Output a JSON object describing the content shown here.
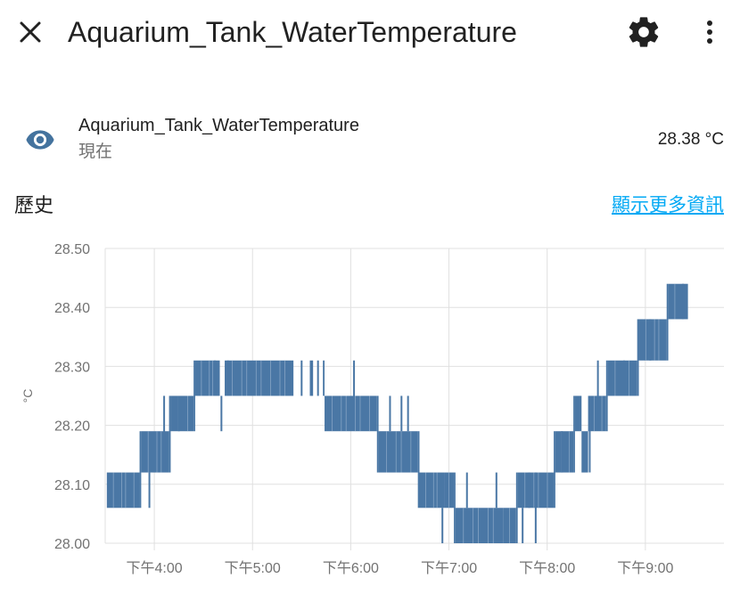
{
  "header": {
    "title": "Aquarium_Tank_WaterTemperature"
  },
  "entity": {
    "name": "Aquarium_Tank_WaterTemperature",
    "subtitle": "現在",
    "value": "28.38 °C"
  },
  "history": {
    "title": "歷史",
    "more_link": "顯示更多資訊"
  },
  "colors": {
    "series": "#4a77a5",
    "link": "#03a9f4",
    "grid": "#e0e0e0",
    "icon": "#44739e"
  },
  "chart_data": {
    "type": "line",
    "ylabel": "°C",
    "ylim": [
      28.0,
      28.5
    ],
    "yticks": [
      "28.50",
      "28.40",
      "28.30",
      "28.20",
      "28.10",
      "28.00"
    ],
    "xlim_minutes": [
      930,
      1308
    ],
    "xticks": [
      {
        "minute": 960,
        "label": "下午4:00"
      },
      {
        "minute": 1020,
        "label": "下午5:00"
      },
      {
        "minute": 1080,
        "label": "下午6:00"
      },
      {
        "minute": 1140,
        "label": "下午7:00"
      },
      {
        "minute": 1200,
        "label": "下午8:00"
      },
      {
        "minute": 1260,
        "label": "下午9:00"
      }
    ],
    "series": [
      {
        "bands": [
          {
            "from": 931,
            "to": 951,
            "low": 28.06,
            "high": 28.12
          },
          {
            "from": 951,
            "to": 952,
            "low": 28.06,
            "high": 28.19
          },
          {
            "from": 952,
            "to": 969,
            "low": 28.12,
            "high": 28.19
          },
          {
            "from": 969,
            "to": 970,
            "low": 28.12,
            "high": 28.25
          },
          {
            "from": 970,
            "to": 984,
            "low": 28.19,
            "high": 28.25
          },
          {
            "from": 984,
            "to": 985,
            "low": 28.19,
            "high": 28.31
          },
          {
            "from": 985,
            "to": 1000,
            "low": 28.25,
            "high": 28.31
          },
          {
            "from": 1003,
            "to": 1045,
            "low": 28.25,
            "high": 28.31
          },
          {
            "from": 1055,
            "to": 1057,
            "low": 28.25,
            "high": 28.31
          },
          {
            "from": 1063,
            "to": 1064,
            "low": 28.25,
            "high": 28.31
          },
          {
            "from": 1064,
            "to": 1096,
            "low": 28.19,
            "high": 28.25
          },
          {
            "from": 1096,
            "to": 1097,
            "low": 28.12,
            "high": 28.25
          },
          {
            "from": 1097,
            "to": 1121,
            "low": 28.12,
            "high": 28.19
          },
          {
            "from": 1121,
            "to": 1122,
            "low": 28.06,
            "high": 28.19
          },
          {
            "from": 1122,
            "to": 1137,
            "low": 28.06,
            "high": 28.12
          },
          {
            "from": 1137,
            "to": 1143,
            "low": 28.06,
            "high": 28.12
          },
          {
            "from": 1143,
            "to": 1144,
            "low": 28.0,
            "high": 28.12
          },
          {
            "from": 1144,
            "to": 1173,
            "low": 28.0,
            "high": 28.06
          },
          {
            "from": 1173,
            "to": 1181,
            "low": 28.0,
            "high": 28.06
          },
          {
            "from": 1181,
            "to": 1182,
            "low": 28.0,
            "high": 28.12
          },
          {
            "from": 1182,
            "to": 1204,
            "low": 28.06,
            "high": 28.12
          },
          {
            "from": 1204,
            "to": 1205,
            "low": 28.06,
            "high": 28.19
          },
          {
            "from": 1205,
            "to": 1216,
            "low": 28.12,
            "high": 28.19
          },
          {
            "from": 1216,
            "to": 1217,
            "low": 28.12,
            "high": 28.25
          },
          {
            "from": 1217,
            "to": 1221,
            "low": 28.19,
            "high": 28.25
          },
          {
            "from": 1221,
            "to": 1225,
            "low": 28.12,
            "high": 28.19
          },
          {
            "from": 1225,
            "to": 1236,
            "low": 28.19,
            "high": 28.25
          },
          {
            "from": 1236,
            "to": 1237,
            "low": 28.19,
            "high": 28.31
          },
          {
            "from": 1237,
            "to": 1255,
            "low": 28.25,
            "high": 28.31
          },
          {
            "from": 1255,
            "to": 1256,
            "low": 28.25,
            "high": 28.38
          },
          {
            "from": 1256,
            "to": 1273,
            "low": 28.31,
            "high": 28.38
          },
          {
            "from": 1273,
            "to": 1274,
            "low": 28.31,
            "high": 28.44
          },
          {
            "from": 1274,
            "to": 1286,
            "low": 28.38,
            "high": 28.44
          }
        ],
        "spikes": [
          {
            "x": 957,
            "low": 28.06,
            "high": 28.12
          },
          {
            "x": 966,
            "low": 28.12,
            "high": 28.25
          },
          {
            "x": 975,
            "low": 28.19,
            "high": 28.25
          },
          {
            "x": 997,
            "low": 28.25,
            "high": 28.31
          },
          {
            "x": 1001,
            "low": 28.19,
            "high": 28.25
          },
          {
            "x": 1005,
            "low": 28.25,
            "high": 28.31
          },
          {
            "x": 1050,
            "low": 28.25,
            "high": 28.31
          },
          {
            "x": 1060,
            "low": 28.25,
            "high": 28.31
          },
          {
            "x": 1082,
            "low": 28.25,
            "high": 28.31
          },
          {
            "x": 1104,
            "low": 28.19,
            "high": 28.25
          },
          {
            "x": 1111,
            "low": 28.19,
            "high": 28.25
          },
          {
            "x": 1115,
            "low": 28.19,
            "high": 28.25
          },
          {
            "x": 1136,
            "low": 28.0,
            "high": 28.06
          },
          {
            "x": 1151,
            "low": 28.06,
            "high": 28.12
          },
          {
            "x": 1169,
            "low": 28.06,
            "high": 28.12
          },
          {
            "x": 1185,
            "low": 28.0,
            "high": 28.06
          },
          {
            "x": 1189,
            "low": 28.06,
            "high": 28.12
          },
          {
            "x": 1193,
            "low": 28.0,
            "high": 28.12
          },
          {
            "x": 1209,
            "low": 28.12,
            "high": 28.19
          },
          {
            "x": 1226,
            "low": 28.12,
            "high": 28.25
          },
          {
            "x": 1231,
            "low": 28.25,
            "high": 28.31
          },
          {
            "x": 1247,
            "low": 28.25,
            "high": 28.31
          },
          {
            "x": 1263,
            "low": 28.31,
            "high": 28.38
          },
          {
            "x": 1283,
            "low": 28.38,
            "high": 28.44
          }
        ]
      }
    ]
  }
}
